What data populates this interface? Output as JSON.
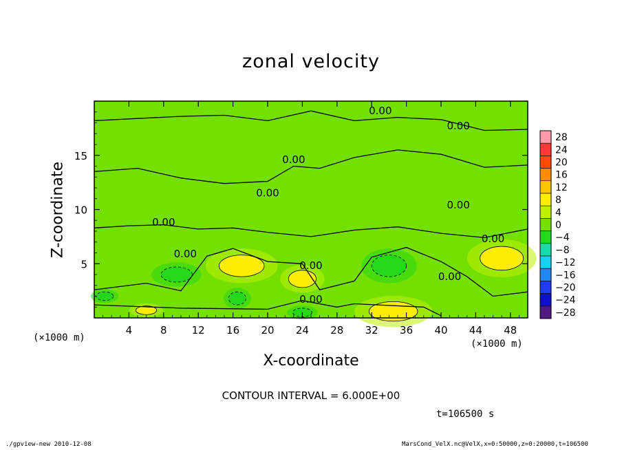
{
  "footer": {
    "left": "./gpview-new   2010-12-08",
    "right": "MarsCond_VelX.nc@VelX,x=0:50000,z=0:20000,t=106500"
  },
  "chart_data": {
    "type": "heatmap",
    "title": "zonal velocity",
    "xlabel": "X-coordinate",
    "ylabel": "Z-coordinate",
    "x_unit": "(×1000 m)",
    "y_unit": "(×1000 m)",
    "xlim": [
      0,
      50
    ],
    "ylim": [
      0,
      20
    ],
    "x_ticks": [
      4,
      8,
      12,
      16,
      20,
      24,
      28,
      32,
      36,
      40,
      44,
      48
    ],
    "y_ticks": [
      5,
      10,
      15
    ],
    "contour_interval": "CONTOUR INTERVAL = 6.000E+00",
    "time": "t=106500 s",
    "contour_labels": [
      {
        "text": "0.00",
        "x": 33,
        "z": 18.8
      },
      {
        "text": "0.00",
        "x": 42,
        "z": 17.4
      },
      {
        "text": "0.00",
        "x": 23,
        "z": 14.3
      },
      {
        "text": "0.00",
        "x": 20,
        "z": 11.2
      },
      {
        "text": "0.00",
        "x": 42,
        "z": 10.1
      },
      {
        "text": "0.00",
        "x": 8,
        "z": 8.5
      },
      {
        "text": "0.00",
        "x": 46,
        "z": 7.0
      },
      {
        "text": "0.00",
        "x": 10.5,
        "z": 5.6
      },
      {
        "text": "0.00",
        "x": 25,
        "z": 4.5
      },
      {
        "text": "0.00",
        "x": 41,
        "z": 3.5
      },
      {
        "text": "0.00",
        "x": 25,
        "z": 1.4
      }
    ],
    "colorbar": {
      "levels": [
        28,
        24,
        20,
        16,
        12,
        8,
        4,
        0,
        -4,
        -8,
        -12,
        -16,
        -20,
        -24,
        -28
      ],
      "colors": [
        "#ff9aa8",
        "#ff3838",
        "#ff4a00",
        "#ff8c00",
        "#ffc400",
        "#ffee00",
        "#bff000",
        "#74e000",
        "#24d81c",
        "#18dca8",
        "#18d0f0",
        "#2088f0",
        "#1e3cf0",
        "#1010c8",
        "#501880"
      ]
    },
    "regions": [
      {
        "value": 6,
        "x": 17,
        "z": 4.8,
        "rx": 2.6,
        "rz": 1.0
      },
      {
        "value": 6,
        "x": 24,
        "z": 3.6,
        "rx": 1.6,
        "rz": 0.8
      },
      {
        "value": 6,
        "x": 34.5,
        "z": 0.6,
        "rx": 2.8,
        "rz": 0.9
      },
      {
        "value": 6,
        "x": 47,
        "z": 5.5,
        "rx": 2.5,
        "rz": 1.1
      },
      {
        "value": 6,
        "x": 6,
        "z": 0.7,
        "rx": 1.2,
        "rz": 0.4
      },
      {
        "value": -6,
        "x": 9.5,
        "z": 4.0,
        "rx": 1.8,
        "rz": 0.7
      },
      {
        "value": -6,
        "x": 34,
        "z": 4.8,
        "rx": 2.0,
        "rz": 1.0
      },
      {
        "value": -6,
        "x": 24,
        "z": 0.5,
        "rx": 1.1,
        "rz": 0.4
      },
      {
        "value": -6,
        "x": 1.2,
        "z": 2.0,
        "rx": 1.0,
        "rz": 0.4
      },
      {
        "value": -6,
        "x": 16.5,
        "z": 1.8,
        "rx": 1.0,
        "rz": 0.6
      }
    ]
  }
}
